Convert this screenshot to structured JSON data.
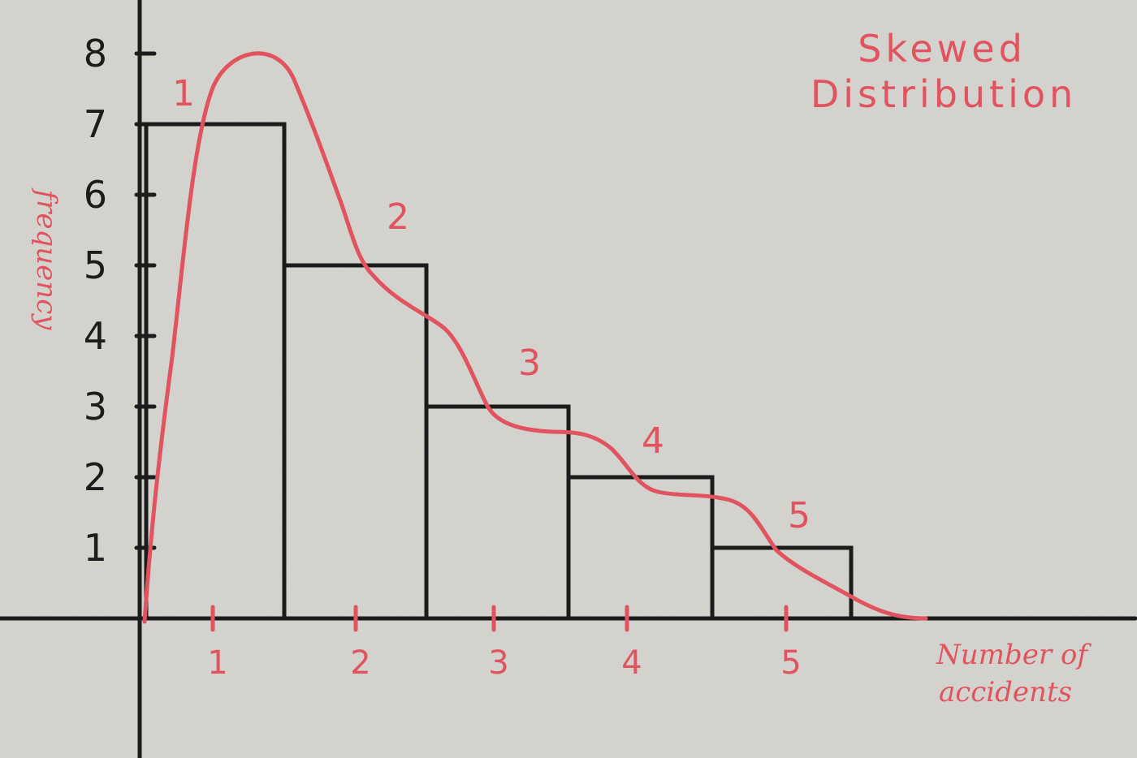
{
  "chart_data": {
    "type": "bar",
    "title_lines": [
      "Skewed",
      "Distribution"
    ],
    "xlabel_lines": [
      "Number of",
      "accidents"
    ],
    "ylabel": "frequency",
    "categories": [
      "1",
      "2",
      "3",
      "4",
      "5"
    ],
    "values": [
      7,
      5,
      3,
      2,
      1
    ],
    "bar_labels": [
      "1",
      "2",
      "3",
      "4",
      "5"
    ],
    "x_ticks": [
      "1",
      "2",
      "3",
      "4",
      "5"
    ],
    "y_ticks": [
      "1",
      "2",
      "3",
      "4",
      "5",
      "6",
      "7",
      "8"
    ],
    "ylim": [
      0,
      8
    ],
    "grid": false,
    "legend": "none",
    "overlay": {
      "type": "curve",
      "description": "hand-drawn skewed distribution curve",
      "peak_value": 8
    },
    "colors": {
      "axes_and_bars": "#1c1c1c",
      "annotations": "#e1545f",
      "background": "#d9d8d3"
    }
  }
}
